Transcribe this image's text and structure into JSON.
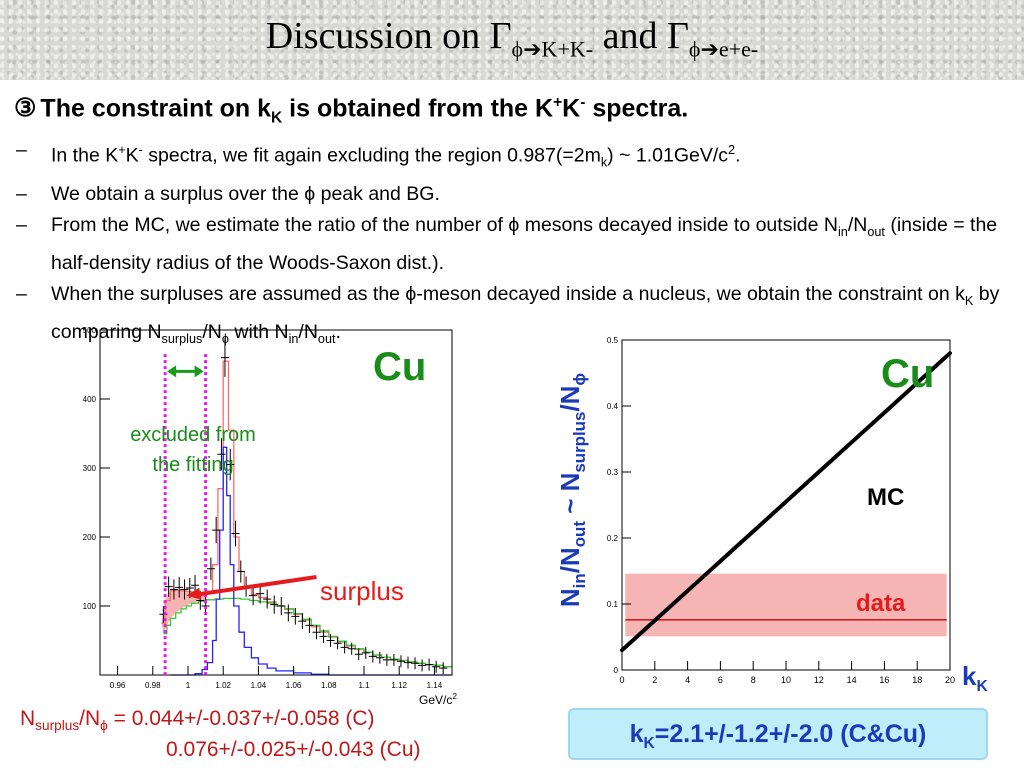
{
  "slide": {
    "title": {
      "prefix": "Discussion on Γ",
      "sub1": "ϕ➔K+K-",
      "mid": " and Γ",
      "sub2": "ϕ➔e+e-"
    },
    "lead": {
      "num": "③",
      "t1": "The constraint on k",
      "s1": "K",
      "t2": " is obtained from the K",
      "p1": "+",
      "t3": "K",
      "p2": "-",
      "t4": " spectra."
    },
    "bullets": [
      {
        "dash": "–",
        "t1": "In the K",
        "p1": "+",
        "t2": "K",
        "p2": "-",
        "t3": " spectra, we fit again excluding the region 0.987(=2m",
        "s1": "k",
        "t4": ") ~ 1.01GeV/c",
        "p3": "2",
        "t5": "."
      },
      {
        "dash": "–",
        "t1": "We obtain a surplus over the ϕ peak and BG."
      },
      {
        "dash": "–",
        "t1": "From the MC, we estimate the ratio of the number of ϕ mesons decayed inside to outside N",
        "s1": "in",
        "t2": "/N",
        "s2": "out",
        "t3": "  (inside = the half-density radius of the Woods-Saxon dist.)."
      },
      {
        "dash": "–",
        "t1": "When the surpluses are assumed as the ϕ-meson decayed inside a nucleus, we obtain the constraint on k",
        "s1": "K",
        "t2": " by comparing N",
        "s2": "surplus",
        "t3": "/N",
        "s3": "ϕ",
        "t4": " with N",
        "s4": "in",
        "t5": "/N",
        "s5": "out",
        "t6": "."
      }
    ],
    "plot1": {
      "label": "Cu",
      "excluded_line1": "excluded from",
      "excluded_line2": "the fitting",
      "surplus": "surplus",
      "xunit": "GeV/c",
      "xunit_sup": "2"
    },
    "plot2": {
      "label": "Cu",
      "mc": "MC",
      "data": "data",
      "xlabel_main": "k",
      "xlabel_sub": "K",
      "ylabel": {
        "a": "N",
        "as": "in",
        "b": "/N",
        "bs": "out",
        "c": " ~ N",
        "cs": "surplus",
        "d": "/N",
        "ds": "ϕ"
      }
    },
    "results": {
      "c_pre": "N",
      "c_sub1": "surplus",
      "c_mid": "/N",
      "c_sub2": "ϕ",
      "c_val": " = 0.044+/-0.037+/-0.058 (C)",
      "cu_val": "0.076+/-0.025+/-0.043 (Cu)",
      "box_pre": "k",
      "box_sub": "K",
      "box_val": "=2.1+/-1.2+/-2.0 (C&Cu)"
    }
  },
  "chart_data": [
    {
      "type": "line",
      "title": "",
      "xlabel": "GeV/c2",
      "ylabel": "",
      "xlim": [
        0.95,
        1.15
      ],
      "ylim": [
        0,
        500
      ],
      "x_ticks": [
        "0.96",
        "0.98",
        "1",
        "1.02",
        "1.04",
        "1.06",
        "1.08",
        "1.1",
        "1.12",
        "1.14"
      ],
      "y_ticks": [
        "100",
        "200",
        "300",
        "400",
        "500"
      ],
      "excluded_region": [
        0.987,
        1.01
      ],
      "series": [
        {
          "points": [
            [
              0.985,
              75
            ],
            [
              0.987,
              108
            ],
            [
              0.99,
              122
            ],
            [
              0.993,
              123
            ],
            [
              0.996,
              122
            ],
            [
              0.999,
              121
            ],
            [
              1.002,
              120
            ],
            [
              1.005,
              119
            ],
            [
              1.008,
              119
            ],
            [
              1.011,
              121
            ],
            [
              1.014,
              160
            ],
            [
              1.017,
              270
            ],
            [
              1.02,
              455
            ],
            [
              1.023,
              355
            ],
            [
              1.026,
              200
            ],
            [
              1.029,
              150
            ],
            [
              1.032,
              128
            ],
            [
              1.036,
              117
            ],
            [
              1.04,
              112
            ],
            [
              1.045,
              106
            ],
            [
              1.05,
              100
            ],
            [
              1.055,
              95
            ],
            [
              1.06,
              88
            ],
            [
              1.065,
              80
            ],
            [
              1.07,
              70
            ],
            [
              1.075,
              62
            ],
            [
              1.08,
              55
            ],
            [
              1.085,
              48
            ],
            [
              1.09,
              42
            ],
            [
              1.095,
              37
            ],
            [
              1.1,
              33
            ],
            [
              1.105,
              29
            ],
            [
              1.11,
              26
            ],
            [
              1.115,
              23
            ],
            [
              1.12,
              21
            ],
            [
              1.125,
              19
            ],
            [
              1.13,
              17
            ],
            [
              1.135,
              15
            ],
            [
              1.14,
              14
            ],
            [
              1.145,
              12
            ],
            [
              1.15,
              11
            ]
          ]
        },
        {
          "points": [
            [
              0.986,
              60
            ],
            [
              0.988,
              72
            ],
            [
              0.99,
              82
            ],
            [
              0.993,
              90
            ],
            [
              0.996,
              96
            ],
            [
              0.999,
              100
            ],
            [
              1.002,
              104
            ],
            [
              1.006,
              107
            ],
            [
              1.01,
              109
            ],
            [
              1.015,
              110
            ],
            [
              1.02,
              111
            ],
            [
              1.025,
              111
            ],
            [
              1.03,
              110
            ],
            [
              1.035,
              108
            ],
            [
              1.04,
              106
            ],
            [
              1.045,
              104
            ],
            [
              1.05,
              100
            ],
            [
              1.055,
              96
            ],
            [
              1.06,
              89
            ],
            [
              1.065,
              81
            ],
            [
              1.07,
              72
            ],
            [
              1.075,
              64
            ],
            [
              1.08,
              56
            ],
            [
              1.085,
              49
            ],
            [
              1.09,
              43
            ],
            [
              1.095,
              38
            ],
            [
              1.1,
              33
            ],
            [
              1.105,
              29
            ],
            [
              1.11,
              26
            ],
            [
              1.115,
              23
            ],
            [
              1.12,
              21
            ],
            [
              1.125,
              19
            ],
            [
              1.13,
              17
            ],
            [
              1.135,
              15
            ],
            [
              1.14,
              14
            ],
            [
              1.145,
              12
            ],
            [
              1.15,
              11
            ]
          ]
        },
        {
          "points": [
            [
              0.99,
              0
            ],
            [
              0.996,
              0
            ],
            [
              1.0,
              0
            ],
            [
              1.004,
              2
            ],
            [
              1.008,
              8
            ],
            [
              1.011,
              18
            ],
            [
              1.014,
              50
            ],
            [
              1.016,
              110
            ],
            [
              1.018,
              210
            ],
            [
              1.02,
              330
            ],
            [
              1.022,
              260
            ],
            [
              1.024,
              160
            ],
            [
              1.026,
              100
            ],
            [
              1.029,
              62
            ],
            [
              1.032,
              40
            ],
            [
              1.036,
              25
            ],
            [
              1.04,
              16
            ],
            [
              1.045,
              10
            ],
            [
              1.05,
              6
            ],
            [
              1.06,
              3
            ],
            [
              1.07,
              1
            ],
            [
              1.08,
              0
            ],
            [
              1.15,
              0
            ]
          ]
        }
      ],
      "data_points": [
        {
          "x": 0.986,
          "y": 88
        },
        {
          "x": 0.989,
          "y": 128
        },
        {
          "x": 0.992,
          "y": 124
        },
        {
          "x": 0.995,
          "y": 127
        },
        {
          "x": 0.998,
          "y": 124
        },
        {
          "x": 1.001,
          "y": 126
        },
        {
          "x": 1.004,
          "y": 130
        },
        {
          "x": 1.007,
          "y": 108
        },
        {
          "x": 1.01,
          "y": 100
        },
        {
          "x": 1.013,
          "y": 154
        },
        {
          "x": 1.016,
          "y": 210
        },
        {
          "x": 1.019,
          "y": 320
        },
        {
          "x": 1.021,
          "y": 460
        },
        {
          "x": 1.024,
          "y": 305
        },
        {
          "x": 1.027,
          "y": 205
        },
        {
          "x": 1.03,
          "y": 150
        },
        {
          "x": 1.033,
          "y": 128
        },
        {
          "x": 1.037,
          "y": 115
        },
        {
          "x": 1.041,
          "y": 118
        },
        {
          "x": 1.045,
          "y": 110
        },
        {
          "x": 1.049,
          "y": 102
        },
        {
          "x": 1.053,
          "y": 100
        },
        {
          "x": 1.057,
          "y": 90
        },
        {
          "x": 1.061,
          "y": 85
        },
        {
          "x": 1.065,
          "y": 78
        },
        {
          "x": 1.069,
          "y": 72
        },
        {
          "x": 1.073,
          "y": 62
        },
        {
          "x": 1.077,
          "y": 56
        },
        {
          "x": 1.081,
          "y": 50
        },
        {
          "x": 1.085,
          "y": 46
        },
        {
          "x": 1.089,
          "y": 40
        },
        {
          "x": 1.093,
          "y": 38
        },
        {
          "x": 1.097,
          "y": 30
        },
        {
          "x": 1.101,
          "y": 32
        },
        {
          "x": 1.105,
          "y": 27
        },
        {
          "x": 1.109,
          "y": 25
        },
        {
          "x": 1.113,
          "y": 22
        },
        {
          "x": 1.117,
          "y": 22
        },
        {
          "x": 1.121,
          "y": 20
        },
        {
          "x": 1.125,
          "y": 18
        },
        {
          "x": 1.129,
          "y": 17
        },
        {
          "x": 1.133,
          "y": 14
        },
        {
          "x": 1.137,
          "y": 15
        },
        {
          "x": 1.141,
          "y": 12
        },
        {
          "x": 1.145,
          "y": 10
        }
      ],
      "colors": {
        "fit": "#ff6b6b",
        "background": "#3cc83c",
        "phi_peak": "#2323ff",
        "surplus_band": "#f5a0a0",
        "excluded_lines": "#e619e6"
      }
    },
    {
      "type": "line",
      "title": "",
      "xlabel": "kK",
      "ylabel": "Nin/Nout ~ Nsurplus/Nϕ",
      "xlim": [
        0,
        20
      ],
      "ylim": [
        0,
        0.5
      ],
      "x_ticks": [
        "0",
        "2",
        "4",
        "6",
        "8",
        "10",
        "12",
        "14",
        "16",
        "18",
        "20"
      ],
      "y_ticks": [
        "0",
        "0.1",
        "0.2",
        "0.3",
        "0.4",
        "0.5"
      ],
      "series": [
        {
          "name": "MC",
          "x": [
            0,
            2,
            4,
            6,
            8,
            10,
            12,
            14,
            16,
            18,
            20
          ],
          "y": [
            0.03,
            0.075,
            0.12,
            0.165,
            0.21,
            0.255,
            0.3,
            0.345,
            0.39,
            0.435,
            0.48
          ]
        }
      ],
      "data_value": 0.076,
      "data_band": [
        0.051,
        0.146
      ],
      "colors": {
        "mc": "#000000",
        "data_line": "#d21c1c",
        "data_band": "#f5a8a8"
      }
    }
  ]
}
